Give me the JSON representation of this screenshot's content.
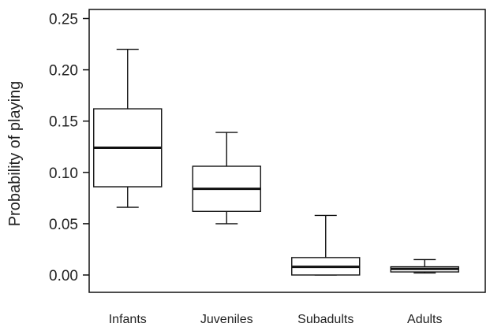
{
  "chart_data": {
    "type": "boxplot",
    "title": "",
    "xlabel": "",
    "ylabel": "Probability of playing",
    "ylim": [
      0,
      0.25
    ],
    "yticks": [
      "0.00",
      "0.05",
      "0.10",
      "0.15",
      "0.20",
      "0.25"
    ],
    "grid": false,
    "categories": [
      "Infants",
      "Juveniles",
      "Subadults",
      "Adults"
    ],
    "boxes": [
      {
        "category": "Infants",
        "whisker_low": 0.066,
        "q1": 0.086,
        "median": 0.124,
        "q3": 0.162,
        "whisker_high": 0.22
      },
      {
        "category": "Juveniles",
        "whisker_low": 0.05,
        "q1": 0.062,
        "median": 0.084,
        "q3": 0.106,
        "whisker_high": 0.139
      },
      {
        "category": "Subadults",
        "whisker_low": 0.0,
        "q1": 0.0,
        "median": 0.008,
        "q3": 0.017,
        "whisker_high": 0.058
      },
      {
        "category": "Adults",
        "whisker_low": 0.002,
        "q1": 0.003,
        "median": 0.006,
        "q3": 0.008,
        "whisker_high": 0.015
      }
    ],
    "colors": {
      "stroke": "#111111",
      "fill": "#ffffff"
    }
  }
}
